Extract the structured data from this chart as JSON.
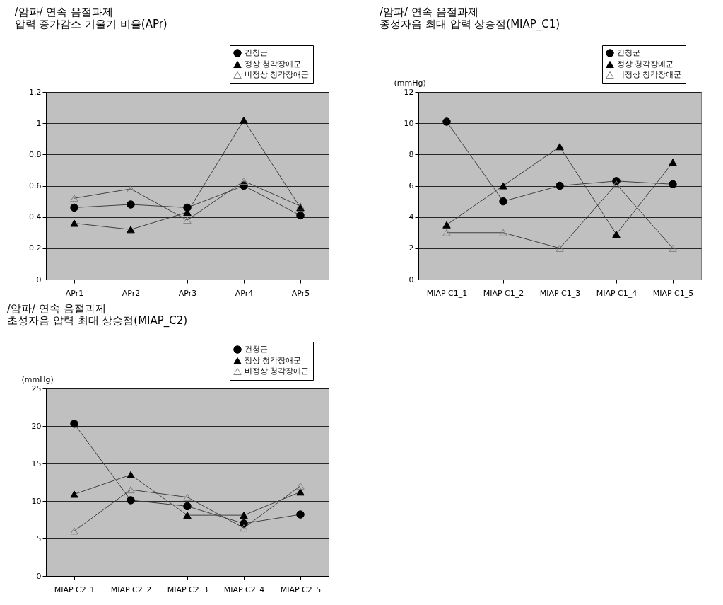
{
  "chart_data": [
    {
      "type": "line",
      "title": "/암파/ 연속 음절과제",
      "subtitle": "압력 증가감소 기울기 비율(APr)",
      "categories": [
        "APr1",
        "APr2",
        "APr3",
        "APr4",
        "APr5"
      ],
      "ylim": [
        0,
        1.2
      ],
      "yticks": [
        {
          "value": 0,
          "label": "0"
        },
        0.2,
        0.4,
        0.6,
        0.8,
        {
          "value": 1,
          "label": "1"
        },
        1.2
      ],
      "grid": "y",
      "legend": "top right",
      "series": [
        {
          "name": "건청군",
          "color": "#000000",
          "marker": "circle",
          "values": [
            0.46,
            0.48,
            0.46,
            0.6,
            0.41
          ]
        },
        {
          "name": "정상 청각장애군",
          "color": "#000000",
          "marker": "triangle",
          "values": [
            0.36,
            0.32,
            0.43,
            1.02,
            0.46
          ]
        },
        {
          "name": "비정상 청각장애군",
          "color": "#808080",
          "marker": "triangle",
          "values": [
            0.52,
            0.58,
            0.38,
            0.63,
            0.47
          ]
        }
      ]
    },
    {
      "type": "line",
      "title": "/암파/ 연속 음절과제",
      "subtitle": "종성자음 최대 압력 상승점(MIAP_C1)",
      "ylabel": "(mmHg)",
      "categories": [
        "MIAP C1_1",
        "MIAP C1_2",
        "MIAP C1_3",
        "MIAP C1_4",
        "MIAP C1_5"
      ],
      "ylim": [
        0,
        12
      ],
      "yticks": [
        0,
        2,
        4,
        6,
        8,
        10,
        12
      ],
      "grid": "y",
      "legend": "top right",
      "series": [
        {
          "name": "건청군",
          "color": "#000000",
          "marker": "circle",
          "values": [
            10.1,
            5.0,
            6.0,
            6.3,
            6.1
          ]
        },
        {
          "name": "정상 청각장애군",
          "color": "#000000",
          "marker": "triangle",
          "values": [
            3.5,
            6.0,
            8.5,
            2.9,
            7.5
          ]
        },
        {
          "name": "비정상 청각장애군",
          "color": "#808080",
          "marker": "triangle",
          "values": [
            3.0,
            3.0,
            2.0,
            6.1,
            2.0
          ]
        }
      ]
    },
    {
      "type": "line",
      "title": "/암파/ 연속 음절과제",
      "subtitle": "초성자음 압력 최대 상승점(MIAP_C2)",
      "ylabel": "(mmHg)",
      "categories": [
        "MIAP C2_1",
        "MIAP C2_2",
        "MIAP C2_3",
        "MIAP C2_4",
        "MIAP C2_5"
      ],
      "ylim": [
        0,
        25
      ],
      "yticks": [
        0,
        5,
        10,
        15,
        20,
        25
      ],
      "grid": "y",
      "legend": "top right",
      "series": [
        {
          "name": "건청군",
          "color": "#000000",
          "marker": "circle",
          "values": [
            20.3,
            10.1,
            9.3,
            7.0,
            8.2
          ]
        },
        {
          "name": "정상 청각장애군",
          "color": "#000000",
          "marker": "triangle",
          "values": [
            10.9,
            13.5,
            8.1,
            8.1,
            11.2
          ]
        },
        {
          "name": "비정상 청각장애군",
          "color": "#808080",
          "marker": "triangle",
          "values": [
            6.0,
            11.5,
            10.5,
            6.4,
            12.0
          ]
        }
      ]
    }
  ]
}
